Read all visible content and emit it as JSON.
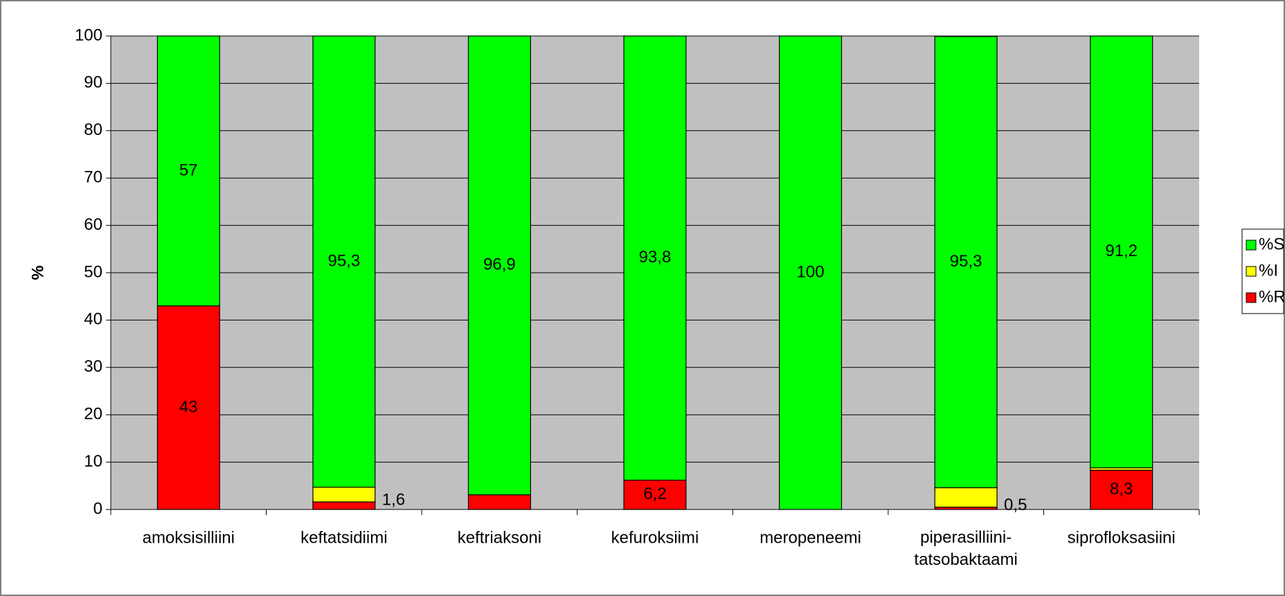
{
  "chart_data": {
    "type": "stacked_bar",
    "y_label": "%",
    "categories": [
      "amoksisilliini",
      "keftatsidiimi",
      "keftriaksoni",
      "kefuroksiimi",
      "meropeneemi",
      "piperasilliini-tatsobaktaami",
      "siprofloksasiini"
    ],
    "series": [
      {
        "name": "%R",
        "color": "#ff0000",
        "values": [
          43,
          1.6,
          3.1,
          6.2,
          0,
          0.5,
          8.3
        ],
        "value_labels": [
          "43",
          "1,6",
          "3,1",
          "6,2",
          null,
          "0,5",
          "8,3"
        ]
      },
      {
        "name": "%I",
        "color": "#ffff00",
        "values": [
          0,
          3.1,
          0,
          0,
          0,
          4.1,
          0.5
        ],
        "value_labels": [
          null,
          "3,1",
          null,
          null,
          null,
          "4,1",
          "0,5"
        ]
      },
      {
        "name": "%S",
        "color": "#00ff00",
        "values": [
          57,
          95.3,
          96.9,
          93.8,
          100,
          95.3,
          91.2
        ],
        "value_labels": [
          "57",
          "95,3",
          "96,9",
          "93,8",
          "100",
          "95,3",
          "91,2"
        ]
      }
    ],
    "ylim": [
      0,
      100
    ],
    "yticks": [
      0,
      10,
      20,
      30,
      40,
      50,
      60,
      70,
      80,
      90,
      100
    ],
    "grid": true,
    "legend": "right"
  }
}
